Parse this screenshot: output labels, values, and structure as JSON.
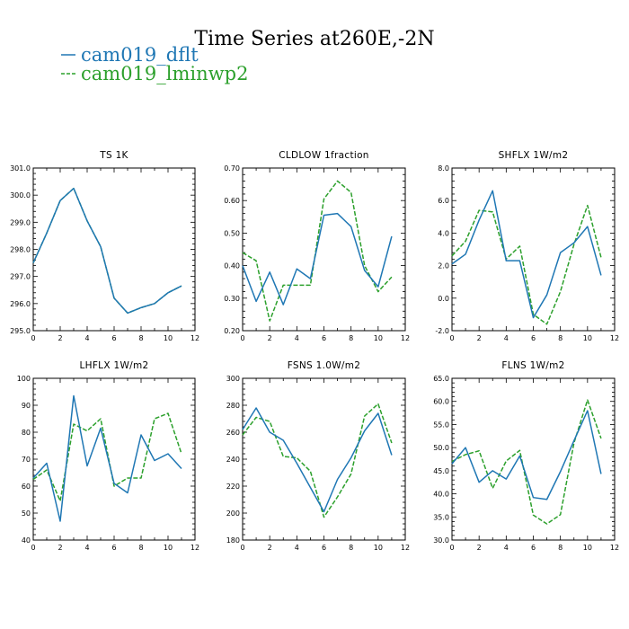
{
  "figure": {
    "title": "Time Series at260E,-2N",
    "legend": [
      {
        "name": "cam019_dflt",
        "color": "#1f77b4",
        "dash": "solid"
      },
      {
        "name": "cam019_lminwp2",
        "color": "#2ca02c",
        "dash": "dashed"
      }
    ]
  },
  "chart_data": [
    {
      "type": "line",
      "title": "TS  1K",
      "x": [
        0,
        1,
        2,
        3,
        4,
        5,
        6,
        7,
        8,
        9,
        10,
        11
      ],
      "xlim": [
        0,
        12
      ],
      "xticks": [
        0,
        2,
        4,
        6,
        8,
        10,
        12
      ],
      "ylim": [
        295.0,
        301.0
      ],
      "yticks": [
        295.0,
        296.0,
        297.0,
        298.0,
        299.0,
        300.0,
        301.0
      ],
      "ytick_labels": [
        "295.0",
        "296.0",
        "297.0",
        "298.0",
        "299.0",
        "300.0",
        "301.0"
      ],
      "series": [
        {
          "name": "cam019_dflt",
          "values": [
            297.5,
            298.6,
            299.8,
            300.25,
            299.05,
            298.1,
            296.2,
            295.65,
            295.85,
            296.0,
            296.4,
            296.65
          ]
        },
        {
          "name": "cam019_lminwp2",
          "values": [
            297.5,
            298.6,
            299.8,
            300.25,
            299.05,
            298.1,
            296.2,
            295.65,
            295.85,
            296.0,
            296.4,
            296.65
          ]
        }
      ]
    },
    {
      "type": "line",
      "title": "CLDLOW  1fraction",
      "x": [
        0,
        1,
        2,
        3,
        4,
        5,
        6,
        7,
        8,
        9,
        10,
        11
      ],
      "xlim": [
        0,
        12
      ],
      "xticks": [
        0,
        2,
        4,
        6,
        8,
        10,
        12
      ],
      "ylim": [
        0.2,
        0.7
      ],
      "yticks": [
        0.2,
        0.3,
        0.4,
        0.5,
        0.6,
        0.7
      ],
      "ytick_labels": [
        "0.20",
        "0.30",
        "0.40",
        "0.50",
        "0.60",
        "0.70"
      ],
      "series": [
        {
          "name": "cam019_dflt",
          "values": [
            0.4,
            0.29,
            0.38,
            0.28,
            0.39,
            0.36,
            0.555,
            0.56,
            0.52,
            0.385,
            0.335,
            0.49
          ]
        },
        {
          "name": "cam019_lminwp2",
          "values": [
            0.44,
            0.415,
            0.23,
            0.34,
            0.34,
            0.34,
            0.605,
            0.66,
            0.625,
            0.4,
            0.32,
            0.365
          ]
        }
      ]
    },
    {
      "type": "line",
      "title": "SHFLX  1W/m2",
      "x": [
        0,
        1,
        2,
        3,
        4,
        5,
        6,
        7,
        8,
        9,
        10,
        11
      ],
      "xlim": [
        0,
        12
      ],
      "xticks": [
        0,
        2,
        4,
        6,
        8,
        10,
        12
      ],
      "ylim": [
        -2.0,
        8.0
      ],
      "yticks": [
        -2.0,
        0.0,
        2.0,
        4.0,
        6.0,
        8.0
      ],
      "ytick_labels": [
        "-2.0",
        "0.0",
        "2.0",
        "4.0",
        "6.0",
        "8.0"
      ],
      "series": [
        {
          "name": "cam019_dflt",
          "values": [
            2.1,
            2.7,
            4.8,
            6.6,
            2.3,
            2.3,
            -1.2,
            0.2,
            2.8,
            3.4,
            4.4,
            1.4
          ]
        },
        {
          "name": "cam019_lminwp2",
          "values": [
            2.6,
            3.5,
            5.4,
            5.3,
            2.4,
            3.2,
            -1.0,
            -1.6,
            0.4,
            3.3,
            5.7,
            2.5
          ]
        }
      ]
    },
    {
      "type": "line",
      "title": "LHFLX  1W/m2",
      "x": [
        0,
        1,
        2,
        3,
        4,
        5,
        6,
        7,
        8,
        9,
        10,
        11
      ],
      "xlim": [
        0,
        12
      ],
      "xticks": [
        0,
        2,
        4,
        6,
        8,
        10,
        12
      ],
      "ylim": [
        40,
        100
      ],
      "yticks": [
        40,
        50,
        60,
        70,
        80,
        90,
        100
      ],
      "ytick_labels": [
        "40",
        "50",
        "60",
        "70",
        "80",
        "90",
        "100"
      ],
      "series": [
        {
          "name": "cam019_dflt",
          "values": [
            63,
            68.5,
            47,
            93.5,
            67.5,
            81.5,
            61,
            57.5,
            79,
            69.5,
            72,
            66.5
          ]
        },
        {
          "name": "cam019_lminwp2",
          "values": [
            62.5,
            66,
            54.5,
            83,
            80.5,
            85,
            60,
            63,
            63,
            85,
            87,
            72
          ]
        }
      ]
    },
    {
      "type": "line",
      "title": "FSNS  1.0W/m2",
      "x": [
        0,
        1,
        2,
        3,
        4,
        5,
        6,
        7,
        8,
        9,
        10,
        11
      ],
      "xlim": [
        0,
        12
      ],
      "xticks": [
        0,
        2,
        4,
        6,
        8,
        10,
        12
      ],
      "ylim": [
        180,
        300
      ],
      "yticks": [
        180,
        200,
        220,
        240,
        260,
        280,
        300
      ],
      "ytick_labels": [
        "180",
        "200",
        "220",
        "240",
        "260",
        "280",
        "300"
      ],
      "series": [
        {
          "name": "cam019_dflt",
          "values": [
            262,
            278,
            260,
            254,
            237,
            219,
            201,
            225,
            241,
            261,
            274,
            243
          ]
        },
        {
          "name": "cam019_lminwp2",
          "values": [
            258,
            271,
            268,
            242,
            241,
            231,
            197,
            212,
            229,
            272,
            281,
            252
          ]
        }
      ]
    },
    {
      "type": "line",
      "title": "FLNS  1W/m2",
      "x": [
        0,
        1,
        2,
        3,
        4,
        5,
        6,
        7,
        8,
        9,
        10,
        11
      ],
      "xlim": [
        0,
        12
      ],
      "xticks": [
        0,
        2,
        4,
        6,
        8,
        10,
        12
      ],
      "ylim": [
        30.0,
        65.0
      ],
      "yticks": [
        30.0,
        35.0,
        40.0,
        45.0,
        50.0,
        55.0,
        60.0,
        65.0
      ],
      "ytick_labels": [
        "30.0",
        "35.0",
        "40.0",
        "45.0",
        "50.0",
        "55.0",
        "60.0",
        "65.0"
      ],
      "series": [
        {
          "name": "cam019_dflt",
          "values": [
            46.5,
            50,
            42.5,
            45,
            43.2,
            48.2,
            39.2,
            38.8,
            44.8,
            51.5,
            58,
            44.3
          ]
        },
        {
          "name": "cam019_lminwp2",
          "values": [
            47,
            48.5,
            49.3,
            41.2,
            47.1,
            49.4,
            35.4,
            33.5,
            35.5,
            51,
            60.3,
            52
          ]
        }
      ]
    }
  ]
}
